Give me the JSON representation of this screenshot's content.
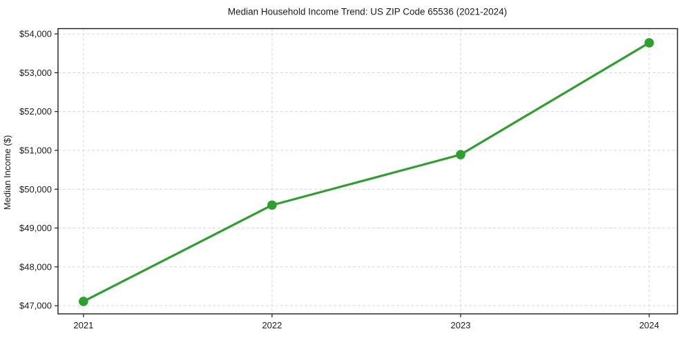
{
  "chart_data": {
    "type": "line",
    "title": "Median Household Income Trend: US ZIP Code 65536 (2021-2024)",
    "xlabel": "",
    "ylabel": "Median Income ($)",
    "x": [
      2021,
      2022,
      2023,
      2024
    ],
    "x_tick_labels": [
      "2021",
      "2022",
      "2023",
      "2024"
    ],
    "series": [
      {
        "name": "Median Household Income",
        "values": [
          47110,
          49590,
          50890,
          53770
        ]
      }
    ],
    "y_ticks": [
      47000,
      48000,
      49000,
      50000,
      51000,
      52000,
      53000,
      54000
    ],
    "y_tick_labels": [
      "$47,000",
      "$48,000",
      "$49,000",
      "$50,000",
      "$51,000",
      "$52,000",
      "$53,000",
      "$54,000"
    ],
    "ylim": [
      46790,
      54135
    ],
    "xlim": [
      2020.865,
      2024.15
    ],
    "grid": "dashed, both axes",
    "legend": "none",
    "colors": {
      "line": "#2ca02c",
      "marker": "#2ca02c",
      "grid": "#d6d6d6",
      "spine": "#1a1a1a",
      "text": "#1a1a1a",
      "background": "#ffffff"
    }
  }
}
